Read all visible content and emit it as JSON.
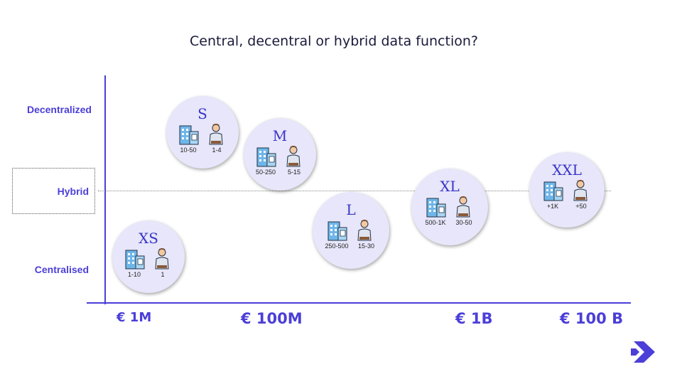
{
  "title": "Central, decentral or hybrid data function?",
  "y_axis": {
    "decentralized": "Decentralized",
    "hybrid": "Hybrid",
    "centralised": "Centralised"
  },
  "x_axis": {
    "t1": "€ 1M",
    "t2": "€ 100M",
    "t3": "€ 1B",
    "t4": "€ 100 B"
  },
  "bubbles": [
    {
      "size": "XS",
      "companies": "1-10",
      "people": "1"
    },
    {
      "size": "S",
      "companies": "10-50",
      "people": "1-4"
    },
    {
      "size": "M",
      "companies": "50-250",
      "people": "5-15"
    },
    {
      "size": "L",
      "companies": "250-500",
      "people": "15-30"
    },
    {
      "size": "XL",
      "companies": "500-1K",
      "people": "30-50"
    },
    {
      "size": "XXL",
      "companies": "+1K",
      "people": "+50"
    }
  ],
  "colors": {
    "accent": "#4b3fd8",
    "bubble_fill": "#e7e6fa",
    "size_text": "#3a35c7"
  },
  "icons": {
    "company": "office-building-icon",
    "person": "person-icon",
    "logo": "brand-logo-icon"
  }
}
